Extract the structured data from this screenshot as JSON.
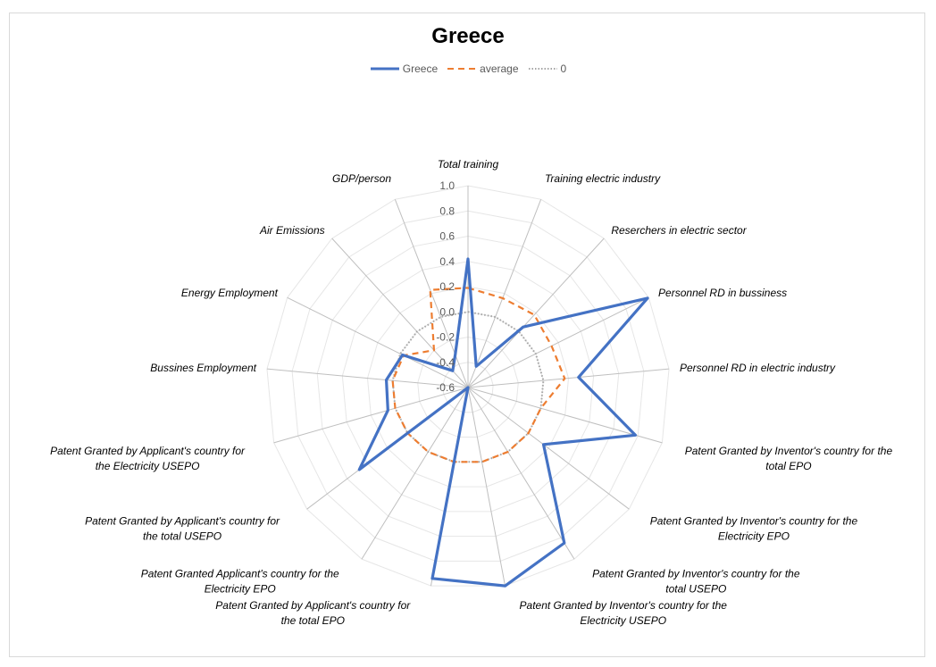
{
  "chart_data": {
    "type": "radar",
    "title": "Greece",
    "categories": [
      "Total training",
      "Training electric industry",
      "Reserchers in electric sector",
      "Personnel RD in bussiness",
      "Personnel RD in electric industry",
      "Patent Granted by Inventor's country for the total EPO",
      "Patent Granted by Inventor's country for the Electricity EPO",
      "Patent Granted by Inventor's country for the total USEPO",
      "Patent Granted by Inventor's country for the Electricity USEPO",
      "Patent Granted by Applicant's country for the total EPO",
      "Patent Granted Applicant's country for the Electricity EPO",
      "Patent Granted by Applicant's country for the total USEPO",
      "Patent Granted by Applicant's country for the Electricity USEPO",
      "Bussines Employment",
      "Energy Employment",
      "Air Emissions",
      "GDP/person"
    ],
    "category_lines": [
      [
        "Total training"
      ],
      [
        "Training electric industry"
      ],
      [
        "Reserchers in electric sector"
      ],
      [
        "Personnel RD in bussiness"
      ],
      [
        "Personnel RD in electric industry"
      ],
      [
        "Patent Granted by Inventor's country for the",
        "total EPO"
      ],
      [
        "Patent Granted by Inventor's country for the",
        "Electricity EPO"
      ],
      [
        "Patent Granted by Inventor's country for the",
        "total USEPO"
      ],
      [
        "Patent Granted by Inventor's country for the",
        "Electricity USEPO"
      ],
      [
        "Patent Granted by Applicant's country for",
        "the total EPO"
      ],
      [
        "Patent Granted Applicant's country for the",
        "Electricity EPO"
      ],
      [
        "Patent Granted by Applicant's country for",
        "the total USEPO"
      ],
      [
        "Patent Granted by Applicant's country for",
        "the Electricity USEPO"
      ],
      [
        "Bussines Employment"
      ],
      [
        "Energy Employment"
      ],
      [
        "Air Emissions"
      ],
      [
        "GDP/person"
      ]
    ],
    "ticks": [
      "1.0",
      "0.8",
      "0.6",
      "0.4",
      "0.2",
      "0.0",
      "-0.2",
      "-0.4",
      "-0.6"
    ],
    "rlim": [
      -0.6,
      1.0
    ],
    "series": [
      {
        "name": "Greece",
        "color": "#4472c4",
        "style": "solid",
        "values": [
          0.42,
          -0.42,
          0.05,
          0.99,
          0.28,
          0.78,
          0.15,
          0.85,
          1.0,
          0.94,
          -0.6,
          0.48,
          0.06,
          0.05,
          -0.02,
          -0.42,
          -0.32
        ]
      },
      {
        "name": "average",
        "color": "#ed7d31",
        "style": "dashed",
        "values": [
          0.19,
          0.16,
          0.18,
          0.14,
          0.17,
          0.0,
          0.0,
          0.0,
          0.0,
          0.0,
          0.0,
          0.0,
          0.0,
          0.0,
          -0.03,
          -0.2,
          0.23
        ]
      },
      {
        "name": "0",
        "color": "#a5a5a5",
        "style": "dotted",
        "values": [
          0,
          0,
          0,
          0,
          0,
          0,
          0,
          0,
          0,
          0,
          0,
          0,
          0,
          0,
          0,
          0,
          0
        ]
      }
    ],
    "legend_position": "top",
    "grid": true
  }
}
